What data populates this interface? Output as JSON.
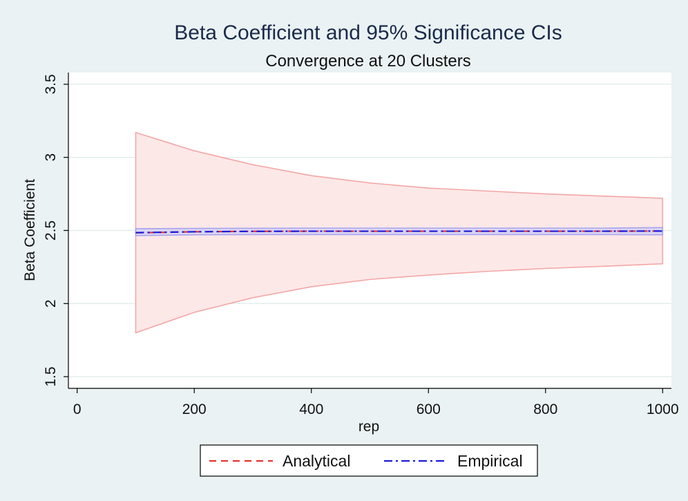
{
  "chart_data": {
    "type": "area",
    "title": "Beta Coefficient and 95% Significance CIs",
    "subtitle": "Convergence at 20 Clusters",
    "xlabel": "rep",
    "ylabel": "Beta Coefficient",
    "xlim": [
      -15,
      1015
    ],
    "ylim": [
      1.42,
      3.58
    ],
    "xticks": [
      0,
      200,
      400,
      600,
      800,
      1000
    ],
    "xtick_labels": [
      "0",
      "200",
      "400",
      "600",
      "800",
      "1000"
    ],
    "yticks": [
      1.5,
      2,
      2.5,
      3,
      3.5
    ],
    "ytick_labels": [
      "1.5",
      "2",
      "2.5",
      "3",
      "3.5"
    ],
    "grid": true,
    "legend_position": "bottom",
    "x": [
      100,
      200,
      300,
      400,
      500,
      600,
      700,
      800,
      900,
      1000
    ],
    "series": [
      {
        "name": "Analytical",
        "style": "dashed",
        "color": "#e8322e",
        "values": [
          2.484,
          2.491,
          2.494,
          2.495,
          2.495,
          2.495,
          2.495,
          2.495,
          2.495,
          2.496
        ],
        "ci_lower": [
          1.8,
          1.94,
          2.04,
          2.115,
          2.165,
          2.195,
          2.22,
          2.24,
          2.255,
          2.272
        ],
        "ci_upper": [
          3.17,
          3.045,
          2.95,
          2.875,
          2.825,
          2.79,
          2.77,
          2.75,
          2.735,
          2.72
        ],
        "ci_fill": "#fde8e8",
        "ci_stroke": "#f4a6a6"
      },
      {
        "name": "Empirical",
        "style": "dash-dot",
        "color": "#1a1ae0",
        "values": [
          2.485,
          2.491,
          2.494,
          2.495,
          2.495,
          2.495,
          2.495,
          2.495,
          2.495,
          2.496
        ],
        "ci_lower": [
          2.465,
          2.47,
          2.472,
          2.472,
          2.472,
          2.472,
          2.472,
          2.472,
          2.472,
          2.47
        ],
        "ci_upper": [
          2.512,
          2.514,
          2.515,
          2.516,
          2.516,
          2.516,
          2.516,
          2.516,
          2.516,
          2.52
        ],
        "ci_fill": "#d9d6f3",
        "ci_stroke": "#a9a3ee"
      }
    ]
  }
}
